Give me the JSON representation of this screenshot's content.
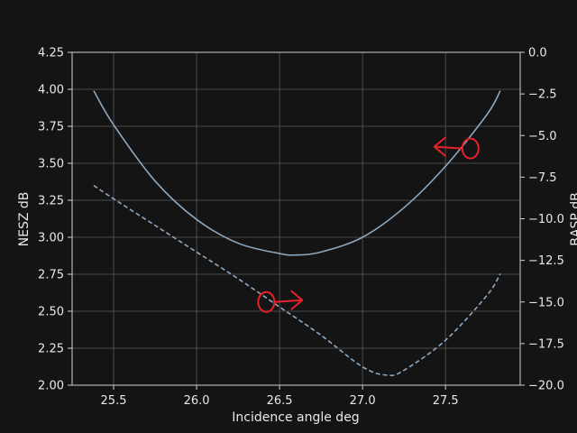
{
  "colors": {
    "background": "#141414",
    "axes": "#d0d0d0",
    "grid": "#5a5a5a",
    "series": "#8ea8c0",
    "annotation": "#e8212c",
    "text": "#e8e8e8"
  },
  "chart_data": {
    "type": "line",
    "title": "",
    "xlabel": "Incidence angle deg",
    "ylabel_left": "NESZ dB",
    "ylabel_right": "BASP dB",
    "xlim": [
      25.25,
      27.95
    ],
    "ylim_left": [
      2.0,
      4.25
    ],
    "ylim_right": [
      -20.0,
      0.0
    ],
    "x_ticks": [
      25.5,
      26.0,
      26.5,
      27.0,
      27.5
    ],
    "x_tick_labels": [
      "25.5",
      "26.0",
      "26.5",
      "27.0",
      "27.5"
    ],
    "y_left_ticks": [
      2.0,
      2.25,
      2.5,
      2.75,
      3.0,
      3.25,
      3.5,
      3.75,
      4.0,
      4.25
    ],
    "y_left_tick_labels": [
      "2.00",
      "2.25",
      "2.50",
      "2.75",
      "3.00",
      "3.25",
      "3.50",
      "3.75",
      "4.00",
      "4.25"
    ],
    "y_right_ticks": [
      0,
      -2.5,
      -5,
      -7.5,
      -10,
      -12.5,
      -15,
      -17.5,
      -20
    ],
    "y_right_tick_labels": [
      "0.0",
      "−2.5",
      "−5.0",
      "−7.5",
      "−10.0",
      "−12.5",
      "−15.0",
      "−17.5",
      "−20.0"
    ],
    "grid": true,
    "series": [
      {
        "axis": "left",
        "style": "solid",
        "x": [
          25.38,
          25.5,
          25.75,
          26.0,
          26.25,
          26.5,
          26.6,
          26.75,
          27.0,
          27.25,
          27.5,
          27.75,
          27.83
        ],
        "y": [
          3.99,
          3.76,
          3.38,
          3.12,
          2.96,
          2.89,
          2.88,
          2.9,
          3.0,
          3.2,
          3.48,
          3.83,
          3.99
        ]
      },
      {
        "axis": "right",
        "style": "dashed",
        "x": [
          25.38,
          25.5,
          25.75,
          26.0,
          26.25,
          26.5,
          26.75,
          27.0,
          27.15,
          27.25,
          27.5,
          27.75,
          27.83
        ],
        "y": [
          -8.0,
          -8.8,
          -10.4,
          -12.0,
          -13.6,
          -15.3,
          -17.0,
          -18.9,
          -19.4,
          -19.1,
          -17.3,
          -14.6,
          -13.3
        ]
      }
    ],
    "annotations": [
      {
        "type": "circle-arrow",
        "series_index": 0,
        "at": [
          27.65,
          3.6
        ],
        "points_to": "left"
      },
      {
        "type": "circle-arrow",
        "series_index": 1,
        "at": [
          26.42,
          -15.0
        ],
        "points_to": "right"
      }
    ]
  }
}
